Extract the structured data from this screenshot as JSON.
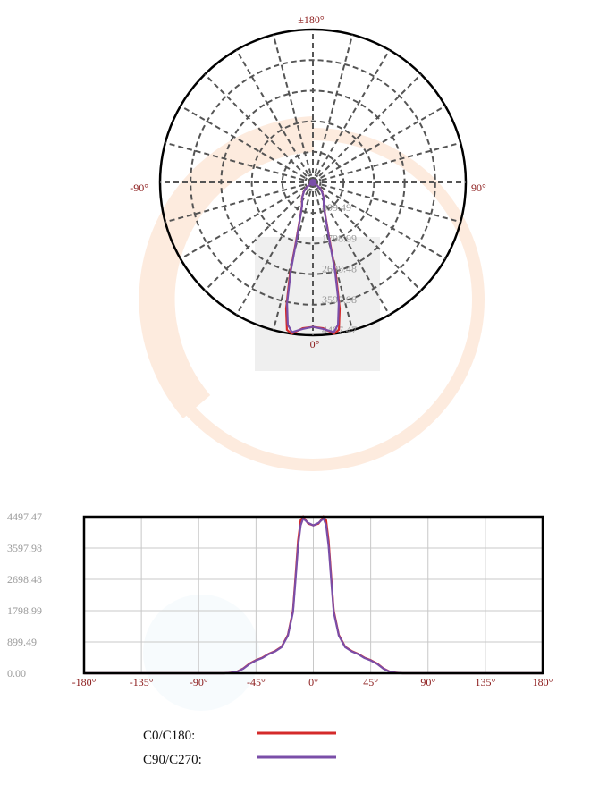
{
  "colors": {
    "c0": "#d42a2a",
    "c90": "#7a4ea8",
    "label": "#8b1a1a",
    "value_label": "#9a9a9a",
    "grid": "#555555"
  },
  "chart_data": [
    {
      "type": "polar",
      "angle_labels": {
        "top": "±180°",
        "bottom": "0°",
        "left": "-90°",
        "right": "90°"
      },
      "ring_labels": [
        "899.49",
        "1798.99",
        "2698.48",
        "3597.98",
        "4497.47"
      ],
      "rmax": 4497.47,
      "spoke_step_deg": 15,
      "series": [
        {
          "name": "C0/C180",
          "color": "#d42a2a",
          "angles": [
            0,
            4,
            8,
            10,
            12,
            14,
            16,
            20,
            25,
            30,
            35,
            40,
            45,
            50,
            55,
            60,
            65,
            70
          ],
          "values": [
            4250,
            4300,
            4497,
            4400,
            3800,
            2800,
            1800,
            1100,
            760,
            640,
            560,
            450,
            380,
            280,
            140,
            45,
            15,
            0
          ]
        },
        {
          "name": "C90/C270",
          "color": "#7a4ea8",
          "angles": [
            0,
            4,
            8,
            10,
            12,
            14,
            16,
            20,
            25,
            30,
            35,
            40,
            45,
            50,
            55,
            60,
            65,
            70
          ],
          "values": [
            4250,
            4320,
            4450,
            4250,
            3650,
            2700,
            1750,
            1080,
            750,
            630,
            550,
            440,
            370,
            270,
            130,
            40,
            12,
            0
          ]
        }
      ]
    },
    {
      "type": "line",
      "x_ticks": [
        "-180°",
        "-135°",
        "-90°",
        "-45°",
        "0°",
        "45°",
        "90°",
        "135°",
        "180°"
      ],
      "y_ticks": [
        "0.00",
        "899.49",
        "1798.99",
        "2698.48",
        "3597.98",
        "4497.47"
      ],
      "xlim": [
        -180,
        180
      ],
      "ylim": [
        0,
        4497.47
      ],
      "series": [
        {
          "name": "C0/C180",
          "color": "#d42a2a",
          "x": [
            -180,
            -70,
            -65,
            -60,
            -55,
            -50,
            -45,
            -40,
            -35,
            -30,
            -25,
            -20,
            -16,
            -14,
            -12,
            -10,
            -8,
            -4,
            0,
            4,
            8,
            10,
            12,
            14,
            16,
            20,
            25,
            30,
            35,
            40,
            45,
            50,
            55,
            60,
            65,
            70,
            180
          ],
          "y": [
            0,
            0,
            15,
            45,
            140,
            280,
            380,
            450,
            560,
            640,
            760,
            1100,
            1800,
            2800,
            3800,
            4400,
            4497,
            4300,
            4250,
            4300,
            4497,
            4400,
            3800,
            2800,
            1800,
            1100,
            760,
            640,
            560,
            450,
            380,
            280,
            140,
            45,
            15,
            0,
            0
          ]
        },
        {
          "name": "C90/C270",
          "color": "#7a4ea8",
          "x": [
            -180,
            -70,
            -65,
            -60,
            -55,
            -50,
            -45,
            -40,
            -35,
            -30,
            -25,
            -20,
            -16,
            -14,
            -12,
            -10,
            -8,
            -4,
            0,
            4,
            8,
            10,
            12,
            14,
            16,
            20,
            25,
            30,
            35,
            40,
            45,
            50,
            55,
            60,
            65,
            70,
            180
          ],
          "y": [
            0,
            0,
            12,
            40,
            130,
            270,
            370,
            440,
            550,
            630,
            750,
            1080,
            1750,
            2700,
            3650,
            4250,
            4450,
            4320,
            4250,
            4320,
            4450,
            4250,
            3650,
            2700,
            1750,
            1080,
            750,
            630,
            550,
            440,
            370,
            270,
            130,
            40,
            12,
            0,
            0
          ]
        }
      ]
    }
  ],
  "legend": {
    "c0_label": "C0/C180:",
    "c90_label": "C90/C270:"
  }
}
